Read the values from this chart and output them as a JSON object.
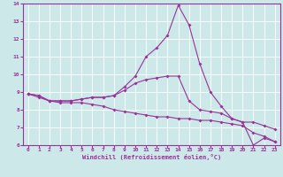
{
  "xlabel": "Windchill (Refroidissement éolien,°C)",
  "bg_color": "#cce8e8",
  "line_color": "#993399",
  "grid_color": "#ffffff",
  "x_values": [
    0,
    1,
    2,
    3,
    4,
    5,
    6,
    7,
    8,
    9,
    10,
    11,
    12,
    13,
    14,
    15,
    16,
    17,
    18,
    19,
    20,
    21,
    22,
    23
  ],
  "line_main": [
    8.9,
    8.8,
    8.5,
    8.5,
    8.5,
    8.6,
    8.7,
    8.7,
    8.8,
    9.3,
    9.9,
    11.0,
    11.5,
    12.2,
    13.9,
    12.8,
    10.6,
    9.0,
    8.2,
    7.5,
    7.3,
    6.0,
    6.4,
    6.2
  ],
  "line_upper": [
    8.9,
    8.8,
    8.5,
    8.5,
    8.5,
    8.6,
    8.7,
    8.7,
    8.8,
    9.1,
    9.5,
    9.7,
    9.8,
    9.9,
    9.9,
    8.5,
    8.0,
    7.9,
    7.8,
    7.5,
    7.3,
    7.3,
    7.1,
    6.9
  ],
  "line_lower": [
    8.9,
    8.7,
    8.5,
    8.4,
    8.4,
    8.4,
    8.3,
    8.2,
    8.0,
    7.9,
    7.8,
    7.7,
    7.6,
    7.6,
    7.5,
    7.5,
    7.4,
    7.4,
    7.3,
    7.2,
    7.1,
    6.7,
    6.5,
    6.2
  ],
  "ylim": [
    6,
    14
  ],
  "xlim": [
    0,
    23
  ],
  "yticks": [
    6,
    7,
    8,
    9,
    10,
    11,
    12,
    13,
    14
  ],
  "xticks": [
    0,
    1,
    2,
    3,
    4,
    5,
    6,
    7,
    8,
    9,
    10,
    11,
    12,
    13,
    14,
    15,
    16,
    17,
    18,
    19,
    20,
    21,
    22,
    23
  ]
}
